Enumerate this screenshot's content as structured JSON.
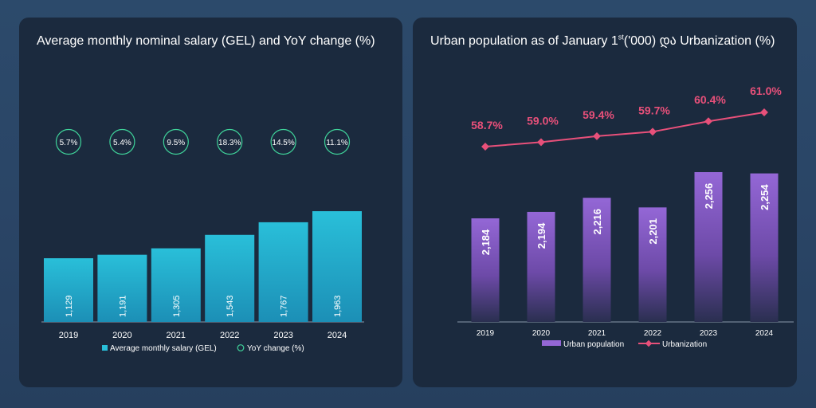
{
  "colors": {
    "salary_bar": "#29bfd9",
    "yoy_circle": "#3fd39a",
    "urban_bar": "#9467d6",
    "urbanization_line": "#e8507a"
  },
  "chart_data": [
    {
      "type": "bar",
      "title": "Average monthly nominal salary (GEL) and YoY change (%)",
      "categories": [
        "2019",
        "2020",
        "2021",
        "2022",
        "2023",
        "2024"
      ],
      "series": [
        {
          "name": "Average monthly salary (GEL)",
          "values": [
            1129,
            1191,
            1305,
            1543,
            1767,
            1963
          ],
          "labels": [
            "1,129",
            "1,191",
            "1,305",
            "1,543",
            "1,767",
            "1,963"
          ]
        },
        {
          "name": "YoY change (%)",
          "values": [
            5.7,
            5.4,
            9.5,
            18.3,
            14.5,
            11.1
          ],
          "labels": [
            "5.7%",
            "5.4%",
            "9.5%",
            "18.3%",
            "14.5%",
            "11.1%"
          ]
        }
      ],
      "legend": [
        "Average monthly salary (GEL)",
        "YoY change (%)"
      ],
      "legend_position": "bottom",
      "ylim": [
        0,
        2000
      ],
      "grid": false
    },
    {
      "type": "bar",
      "title_main": "Urban population as of January 1",
      "title_sup": "st",
      "title_rest": "('000) და Urbanization (%)",
      "categories": [
        "2019",
        "2020",
        "2021",
        "2022",
        "2023",
        "2024"
      ],
      "series": [
        {
          "name": "Urban population",
          "values": [
            2184,
            2194,
            2216,
            2201,
            2256,
            2254
          ],
          "labels": [
            "2,184",
            "2,194",
            "2,216",
            "2,201",
            "2,256",
            "2,254"
          ]
        },
        {
          "name": "Urbanization",
          "type": "line",
          "values": [
            58.7,
            59.0,
            59.4,
            59.7,
            60.4,
            61.0
          ],
          "labels": [
            "58.7%",
            "59.0%",
            "59.4%",
            "59.7%",
            "60.4%",
            "61.0%"
          ]
        }
      ],
      "legend": [
        "Urban population",
        "Urbanization"
      ],
      "legend_position": "bottom",
      "grid": false
    }
  ]
}
